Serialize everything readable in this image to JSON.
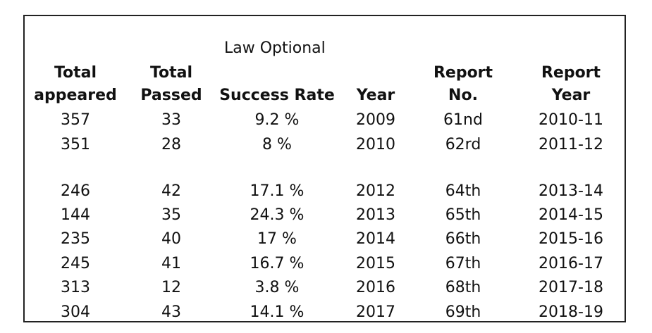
{
  "caption": "Law Optional",
  "headers": [
    [
      "Total",
      "appeared"
    ],
    [
      "Total",
      "Passed"
    ],
    [
      "",
      "Success Rate"
    ],
    [
      "",
      "Year"
    ],
    [
      "Report",
      "No."
    ],
    [
      "Report",
      "Year"
    ]
  ],
  "rows": [
    [
      "357",
      "33",
      "9.2 %",
      "2009",
      "61nd",
      "2010-11"
    ],
    [
      "351",
      "28",
      "8 %",
      "2010",
      "62rd",
      "2011-12"
    ],
    [
      "246",
      "42",
      "17.1 %",
      "2012",
      "64th",
      "2013-14"
    ],
    [
      "144",
      "35",
      "24.3 %",
      "2013",
      "65th",
      "2014-15"
    ],
    [
      "235",
      "40",
      "17 %",
      "2014",
      "66th",
      "2015-16"
    ],
    [
      "245",
      "41",
      "16.7 %",
      "2015",
      "67th",
      "2016-17"
    ],
    [
      "313",
      "12",
      "3.8 %",
      "2016",
      "68th",
      "2017-18"
    ],
    [
      "304",
      "43",
      "14.1 %",
      "2017",
      "69th",
      "2018-19"
    ]
  ]
}
